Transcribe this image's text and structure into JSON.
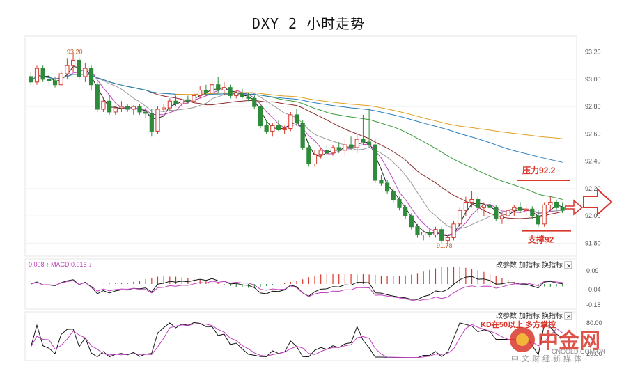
{
  "title": "DXY 2 小时走势",
  "chart_data": {
    "type": "candlestick",
    "price_axis": {
      "ticks": [
        "93.20",
        "93.00",
        "92.80",
        "92.60",
        "92.40",
        "92.20",
        "92.00",
        "91.80"
      ],
      "ylim": [
        91.72,
        93.3
      ]
    },
    "annotations": {
      "high_label": "93.20",
      "low_label": "91.78",
      "resistance_label": "压力92.2",
      "support_label": "支撑92"
    },
    "resistance_level": 92.2,
    "support_level": 92.0,
    "candles": [
      [
        93.02,
        93.05,
        92.95,
        92.98
      ],
      [
        92.98,
        93.1,
        92.96,
        93.08
      ],
      [
        93.08,
        93.1,
        92.98,
        93.0
      ],
      [
        93.0,
        93.04,
        92.96,
        92.99
      ],
      [
        92.99,
        93.02,
        92.94,
        92.96
      ],
      [
        92.96,
        93.06,
        92.95,
        93.04
      ],
      [
        93.04,
        93.15,
        93.0,
        93.1
      ],
      [
        93.1,
        93.2,
        93.05,
        93.14
      ],
      [
        93.14,
        93.16,
        93.0,
        93.02
      ],
      [
        93.02,
        93.12,
        92.98,
        93.08
      ],
      [
        93.08,
        93.1,
        92.92,
        92.96
      ],
      [
        92.96,
        92.98,
        92.76,
        92.78
      ],
      [
        92.78,
        92.86,
        92.76,
        92.84
      ],
      [
        92.84,
        92.88,
        92.74,
        92.76
      ],
      [
        92.76,
        92.8,
        92.74,
        92.79
      ],
      [
        92.79,
        92.84,
        92.76,
        92.8
      ],
      [
        92.8,
        92.82,
        92.76,
        92.78
      ],
      [
        92.78,
        92.81,
        92.74,
        92.8
      ],
      [
        92.8,
        92.82,
        92.74,
        92.76
      ],
      [
        92.76,
        92.79,
        92.72,
        92.75
      ],
      [
        92.75,
        92.78,
        92.58,
        92.62
      ],
      [
        92.62,
        92.8,
        92.6,
        92.78
      ],
      [
        92.78,
        92.82,
        92.76,
        92.79
      ],
      [
        92.79,
        92.86,
        92.77,
        92.84
      ],
      [
        92.84,
        92.88,
        92.8,
        92.82
      ],
      [
        92.82,
        92.86,
        92.8,
        92.85
      ],
      [
        92.85,
        92.88,
        92.82,
        92.84
      ],
      [
        92.84,
        92.9,
        92.82,
        92.88
      ],
      [
        92.88,
        92.95,
        92.86,
        92.92
      ],
      [
        92.92,
        92.96,
        92.88,
        92.9
      ],
      [
        92.9,
        93.0,
        92.88,
        92.96
      ],
      [
        92.96,
        93.02,
        92.9,
        92.92
      ],
      [
        92.92,
        92.98,
        92.88,
        92.94
      ],
      [
        92.94,
        92.96,
        92.86,
        92.88
      ],
      [
        92.88,
        92.92,
        92.86,
        92.9
      ],
      [
        92.9,
        92.93,
        92.86,
        92.87
      ],
      [
        92.87,
        92.9,
        92.84,
        92.86
      ],
      [
        92.86,
        92.88,
        92.78,
        92.8
      ],
      [
        92.8,
        92.82,
        92.64,
        92.66
      ],
      [
        92.66,
        92.7,
        92.6,
        92.62
      ],
      [
        92.62,
        92.68,
        92.58,
        92.66
      ],
      [
        92.66,
        92.7,
        92.62,
        92.63
      ],
      [
        92.63,
        92.66,
        92.6,
        92.64
      ],
      [
        92.64,
        92.76,
        92.62,
        92.74
      ],
      [
        92.74,
        92.78,
        92.66,
        92.68
      ],
      [
        92.68,
        92.7,
        92.48,
        92.5
      ],
      [
        92.5,
        92.54,
        92.36,
        92.38
      ],
      [
        92.38,
        92.48,
        92.36,
        92.45
      ],
      [
        92.45,
        92.5,
        92.42,
        92.48
      ],
      [
        92.48,
        92.52,
        92.44,
        92.46
      ],
      [
        92.46,
        92.52,
        92.44,
        92.5
      ],
      [
        92.5,
        92.54,
        92.46,
        92.48
      ],
      [
        92.48,
        92.56,
        92.44,
        92.52
      ],
      [
        92.52,
        92.58,
        92.48,
        92.5
      ],
      [
        92.5,
        92.6,
        92.46,
        92.56
      ],
      [
        92.56,
        92.74,
        92.52,
        92.54
      ],
      [
        92.54,
        92.78,
        92.5,
        92.52
      ],
      [
        92.52,
        92.56,
        92.24,
        92.26
      ],
      [
        92.26,
        92.3,
        92.22,
        92.24
      ],
      [
        92.24,
        92.26,
        92.16,
        92.18
      ],
      [
        92.18,
        92.2,
        92.1,
        92.12
      ],
      [
        92.12,
        92.14,
        92.04,
        92.06
      ],
      [
        92.06,
        92.08,
        91.98,
        92.0
      ],
      [
        92.0,
        92.02,
        91.9,
        91.92
      ],
      [
        91.92,
        91.94,
        91.84,
        91.86
      ],
      [
        91.86,
        91.9,
        91.82,
        91.88
      ],
      [
        91.88,
        91.9,
        91.84,
        91.86
      ],
      [
        91.86,
        91.92,
        91.84,
        91.9
      ],
      [
        91.9,
        91.92,
        91.8,
        91.82
      ],
      [
        91.82,
        91.86,
        91.78,
        91.84
      ],
      [
        91.84,
        91.96,
        91.82,
        91.94
      ],
      [
        91.94,
        92.06,
        91.9,
        92.04
      ],
      [
        92.04,
        92.14,
        92.0,
        92.1
      ],
      [
        92.1,
        92.18,
        92.06,
        92.12
      ],
      [
        92.12,
        92.14,
        92.02,
        92.06
      ],
      [
        92.06,
        92.1,
        92.0,
        92.08
      ],
      [
        92.08,
        92.12,
        92.04,
        92.06
      ],
      [
        92.06,
        92.08,
        91.96,
        91.98
      ],
      [
        91.98,
        92.02,
        91.94,
        92.0
      ],
      [
        92.0,
        92.06,
        91.96,
        92.04
      ],
      [
        92.04,
        92.08,
        92.0,
        92.06
      ],
      [
        92.06,
        92.1,
        92.02,
        92.04
      ],
      [
        92.04,
        92.08,
        92.0,
        92.05
      ],
      [
        92.05,
        92.07,
        91.98,
        92.0
      ],
      [
        92.0,
        92.04,
        91.92,
        91.94
      ],
      [
        91.94,
        92.1,
        91.92,
        92.08
      ],
      [
        92.08,
        92.14,
        92.04,
        92.1
      ],
      [
        92.1,
        92.12,
        92.04,
        92.06
      ],
      [
        92.06,
        92.1,
        92.02,
        92.04
      ]
    ],
    "macd_panel": {
      "label": "-0.008 ↑ MACD:0.016 ↓",
      "ticks": [
        "0.09",
        "-0.04",
        "-0.18"
      ]
    },
    "kd_panel": {
      "ticks": [
        "80.00",
        "20.00"
      ],
      "annotation": "KD在50以上 多方掌控"
    },
    "colors": {
      "up": "#d9362b",
      "down": "#2e8b3a",
      "ma_black": "#222222",
      "ma_magenta": "#c040c0",
      "ma_gray": "#9a9a9a",
      "ma_darkred": "#8b2a2a",
      "ma_green": "#3a9a3a",
      "ma_blue": "#2a7fc0",
      "ma_orange": "#e0a020"
    }
  },
  "toolbar": {
    "macd": {
      "change_params": "改参数",
      "add_indicator": "加指标",
      "switch_indicator": "换指标",
      "close": "✕"
    },
    "kd": {
      "change_params": "改参数",
      "add_indicator": "加指标",
      "switch_indicator": "换指标",
      "close": "✕"
    }
  },
  "watermark": {
    "brand": "中金网",
    "domain": "CNGOLD.COM.CN",
    "tagline": "中文财经新媒体"
  }
}
